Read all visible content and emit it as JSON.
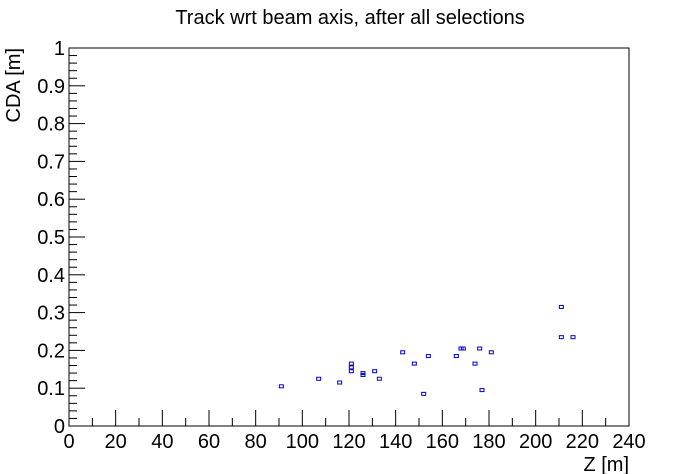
{
  "chart_data": {
    "type": "scatter",
    "title": "Track wrt beam axis, after all selections",
    "xlabel": "Z [m]",
    "ylabel": "CDA [m]",
    "xlim": [
      0,
      240
    ],
    "ylim": [
      0,
      1
    ],
    "grid": false,
    "x_ticks": [
      "0",
      "20",
      "40",
      "60",
      "80",
      "100",
      "120",
      "140",
      "160",
      "180",
      "200",
      "220",
      "240"
    ],
    "y_ticks": [
      "0",
      "0.1",
      "0.2",
      "0.3",
      "0.4",
      "0.5",
      "0.6",
      "0.7",
      "0.8",
      "0.9",
      "1"
    ],
    "series": [
      {
        "color": "#0000cc",
        "points": [
          [
            91,
            0.105
          ],
          [
            107,
            0.125
          ],
          [
            116,
            0.115
          ],
          [
            121,
            0.165
          ],
          [
            121,
            0.155
          ],
          [
            121,
            0.145
          ],
          [
            126,
            0.14
          ],
          [
            126,
            0.135
          ],
          [
            131,
            0.145
          ],
          [
            133,
            0.125
          ],
          [
            143,
            0.195
          ],
          [
            148,
            0.165
          ],
          [
            152,
            0.085
          ],
          [
            154,
            0.185
          ],
          [
            166,
            0.185
          ],
          [
            168,
            0.205
          ],
          [
            169,
            0.205
          ],
          [
            174,
            0.165
          ],
          [
            176,
            0.205
          ],
          [
            177,
            0.095
          ],
          [
            181,
            0.195
          ],
          [
            211,
            0.315
          ],
          [
            211,
            0.235
          ],
          [
            216,
            0.235
          ]
        ]
      }
    ]
  }
}
